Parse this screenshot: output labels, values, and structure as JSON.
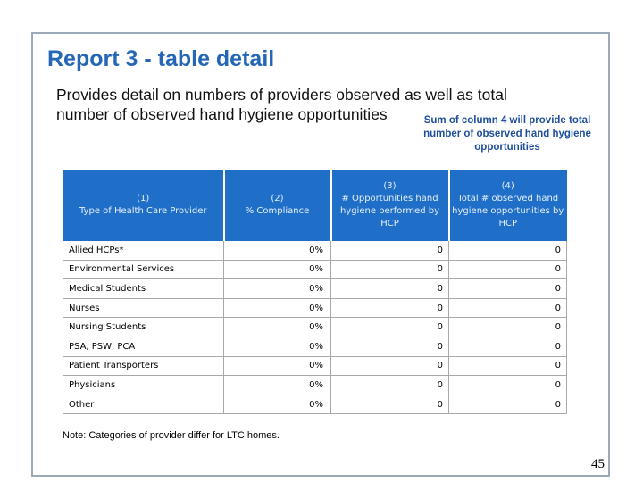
{
  "slide": {
    "title": "Report 3 -  table detail",
    "subtitle": "Provides detail on numbers of providers observed as well as total number of observed hand hygiene opportunities",
    "callout": "Sum of column 4 will provide total number of observed hand hygiene opportunities",
    "note": "Note: Categories of provider differ for LTC homes.",
    "page_number": "45"
  },
  "table": {
    "headers": [
      {
        "num": "(1)",
        "label": "Type of Health Care Provider"
      },
      {
        "num": "(2)",
        "label": "% Compliance"
      },
      {
        "num": "(3)",
        "label": "# Opportunities  hand hygiene performed by HCP"
      },
      {
        "num": "(4)",
        "label": "Total # observed hand hygiene opportunities by HCP"
      }
    ],
    "rows": [
      {
        "provider": "Allied HCPs*",
        "compliance": "0%",
        "performed": "0",
        "observed": "0"
      },
      {
        "provider": "Environmental Services",
        "compliance": "0%",
        "performed": "0",
        "observed": "0"
      },
      {
        "provider": "Medical Students",
        "compliance": "0%",
        "performed": "0",
        "observed": "0"
      },
      {
        "provider": "Nurses",
        "compliance": "0%",
        "performed": "0",
        "observed": "0"
      },
      {
        "provider": "Nursing Students",
        "compliance": "0%",
        "performed": "0",
        "observed": "0"
      },
      {
        "provider": "PSA, PSW, PCA",
        "compliance": "0%",
        "performed": "0",
        "observed": "0"
      },
      {
        "provider": "Patient Transporters",
        "compliance": "0%",
        "performed": "0",
        "observed": "0"
      },
      {
        "provider": "Physicians",
        "compliance": "0%",
        "performed": "0",
        "observed": "0"
      },
      {
        "provider": "Other",
        "compliance": "0%",
        "performed": "0",
        "observed": "0"
      }
    ]
  },
  "colors": {
    "title": "#2567b6",
    "header_bg": "#1f6fc8",
    "callout": "#1f4e9c"
  }
}
